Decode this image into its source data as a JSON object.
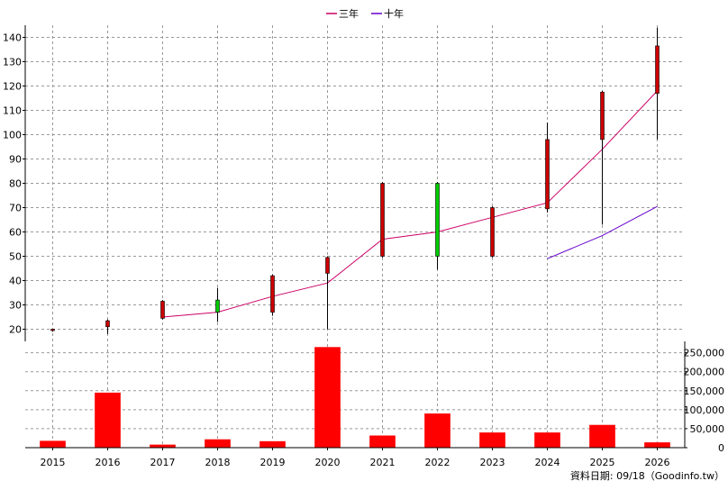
{
  "chart_data": {
    "type": "candlestick+bar",
    "legend": [
      {
        "name": "三年",
        "color": "#cc0066"
      },
      {
        "name": "十年",
        "color": "#6600cc"
      }
    ],
    "years": [
      "2015",
      "2016",
      "2017",
      "2018",
      "2019",
      "2020",
      "2021",
      "2022",
      "2023",
      "2024",
      "2025",
      "2026"
    ],
    "candles": [
      {
        "open": 20,
        "close": 19.5,
        "high": 20,
        "low": 19,
        "up": false
      },
      {
        "open": 23.5,
        "close": 21,
        "high": 24,
        "low": 18,
        "up": false
      },
      {
        "open": 31.5,
        "close": 24.5,
        "high": 32,
        "low": 24,
        "up": false
      },
      {
        "open": 27,
        "close": 32,
        "high": 37,
        "low": 23,
        "up": true
      },
      {
        "open": 42,
        "close": 27,
        "high": 42.5,
        "low": 25.5,
        "up": false
      },
      {
        "open": 49.5,
        "close": 43,
        "high": 50,
        "low": 20,
        "up": false
      },
      {
        "open": 80,
        "close": 50,
        "high": 80.5,
        "low": 49.5,
        "up": false
      },
      {
        "open": 50,
        "close": 80,
        "high": 80.5,
        "low": 44.5,
        "up": true
      },
      {
        "open": 70,
        "close": 50,
        "high": 70.5,
        "low": 49.5,
        "up": false
      },
      {
        "open": 98,
        "close": 69.5,
        "high": 105,
        "low": 68,
        "up": false
      },
      {
        "open": 117.5,
        "close": 98,
        "high": 118,
        "low": 63,
        "up": false
      },
      {
        "open": 136.5,
        "close": 117,
        "high": 144,
        "low": 98,
        "up": false
      }
    ],
    "ma3": [
      null,
      null,
      25,
      27,
      33.5,
      39,
      57,
      60,
      66,
      72,
      94,
      118
    ],
    "ma10": [
      null,
      null,
      null,
      null,
      null,
      null,
      null,
      null,
      null,
      49,
      58.5,
      70.5
    ],
    "volume": [
      18000,
      145000,
      8000,
      22000,
      17000,
      265000,
      32000,
      90000,
      40000,
      40000,
      60000,
      14000
    ],
    "price_axis": {
      "min": 15,
      "max": 145,
      "ticks": [
        20,
        30,
        40,
        50,
        60,
        70,
        80,
        90,
        100,
        110,
        120,
        130,
        140
      ]
    },
    "volume_axis": {
      "min": 0,
      "max": 280000,
      "ticks": [
        0,
        50000,
        100000,
        150000,
        200000,
        250000
      ],
      "tick_labels": [
        "0",
        "50,000",
        "100,000",
        "150,000",
        "200,000",
        "250,000"
      ]
    },
    "grid": true,
    "footer": "資料日期: 09/18（Goodinfo.tw）",
    "colors": {
      "up_candle": "#00cc00",
      "down_candle": "#cc0000",
      "volume_bar": "#ff0000",
      "wick": "#000000",
      "grid": "#999999"
    }
  }
}
